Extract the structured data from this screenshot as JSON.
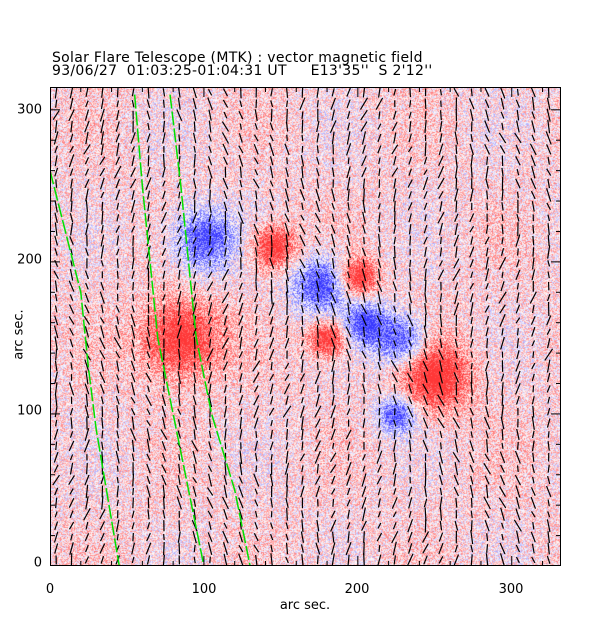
{
  "chart_data": {
    "type": "heatmap",
    "title": "Solar Flare Telescope (MTK) : vector magnetic field",
    "subtitle": "93/06/27  01:03:25-01:04:31 UT     E13'35''  S 2'12''",
    "xlabel": "arc sec.",
    "ylabel": "arc sec.",
    "xlim": [
      0,
      332
    ],
    "ylim": [
      0,
      315
    ],
    "xticks": [
      "0",
      "100",
      "200",
      "300"
    ],
    "yticks": [
      "0",
      "100",
      "200",
      "300"
    ],
    "xtick_values": [
      0,
      100,
      200,
      300
    ],
    "ytick_values": [
      0,
      100,
      200,
      300
    ],
    "colors": {
      "positive": "#ff2020",
      "negative": "#2020ff",
      "vectors": "#000000",
      "contours": "#00e000"
    },
    "polarity_regions": [
      {
        "polarity": "negative",
        "x": 175,
        "y": 185,
        "r": 18
      },
      {
        "polarity": "negative",
        "x": 205,
        "y": 160,
        "r": 14
      },
      {
        "polarity": "negative",
        "x": 228,
        "y": 148,
        "r": 16
      },
      {
        "polarity": "negative",
        "x": 100,
        "y": 215,
        "r": 20
      },
      {
        "polarity": "negative",
        "x": 225,
        "y": 100,
        "r": 12
      },
      {
        "polarity": "positive",
        "x": 250,
        "y": 125,
        "r": 22
      },
      {
        "polarity": "positive",
        "x": 200,
        "y": 190,
        "r": 12
      },
      {
        "polarity": "positive",
        "x": 180,
        "y": 150,
        "r": 12
      },
      {
        "polarity": "positive",
        "x": 145,
        "y": 210,
        "r": 14
      },
      {
        "polarity": "positive",
        "x": 85,
        "y": 150,
        "r": 25
      }
    ],
    "contours": [
      [
        [
          0,
          260
        ],
        [
          10,
          220
        ],
        [
          20,
          180
        ],
        [
          25,
          130
        ],
        [
          30,
          90
        ],
        [
          35,
          60
        ],
        [
          40,
          30
        ],
        [
          45,
          0
        ]
      ],
      [
        [
          55,
          310
        ],
        [
          60,
          250
        ],
        [
          65,
          200
        ],
        [
          70,
          150
        ],
        [
          80,
          100
        ],
        [
          90,
          50
        ],
        [
          100,
          0
        ]
      ],
      [
        [
          78,
          310
        ],
        [
          85,
          250
        ],
        [
          90,
          200
        ],
        [
          95,
          150
        ],
        [
          105,
          100
        ],
        [
          120,
          50
        ],
        [
          130,
          0
        ]
      ]
    ]
  }
}
